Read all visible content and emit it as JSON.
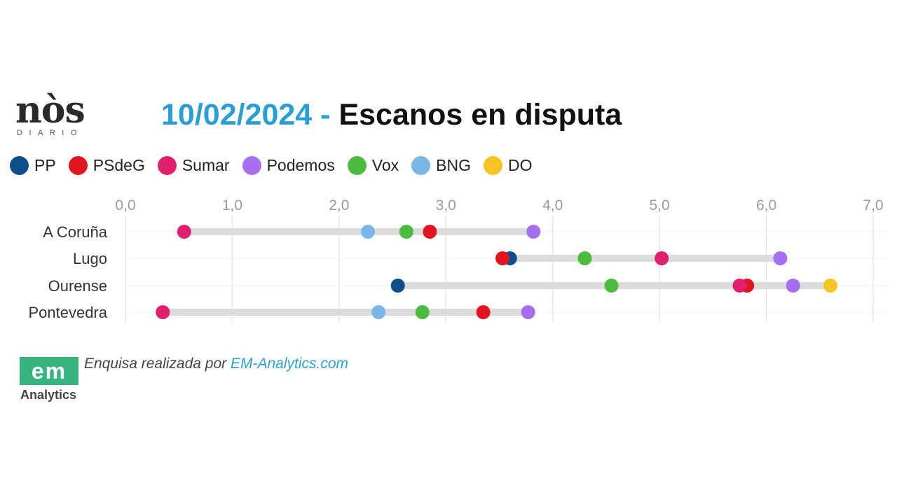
{
  "header": {
    "logo_text": "nòs",
    "logo_subtext": "DIARIO",
    "title_date": "10/02/2024",
    "title_separator": " - ",
    "title_main": "Escanos en disputa"
  },
  "colors": {
    "PP": "#0d4f8b",
    "PSdeG": "#e0151f",
    "Sumar": "#e0206f",
    "Podemos": "#a66ff0",
    "Vox": "#4cbb3f",
    "BNG": "#7ab7e6",
    "DO": "#f6c424",
    "title_accent": "#2a9fd6",
    "footer_logo": "#37b37f"
  },
  "chart_data": {
    "type": "scatter",
    "subtype": "dot-plot",
    "x_tick_labels": [
      "0,0",
      "1,0",
      "2,0",
      "3,0",
      "4,0",
      "5,0",
      "6,0",
      "7,0"
    ],
    "xlim": [
      0,
      7
    ],
    "grid": true,
    "legend_position": "top",
    "categories": [
      "A Coruña",
      "Lugo",
      "Ourense",
      "Pontevedra"
    ],
    "series": [
      {
        "name": "PP",
        "color_key": "PP",
        "values": [
          null,
          3.6,
          2.55,
          null
        ]
      },
      {
        "name": "PSdeG",
        "color_key": "PSdeG",
        "values": [
          2.85,
          3.53,
          5.82,
          3.35
        ]
      },
      {
        "name": "Sumar",
        "color_key": "Sumar",
        "values": [
          0.55,
          5.02,
          5.75,
          0.35
        ]
      },
      {
        "name": "Podemos",
        "color_key": "Podemos",
        "values": [
          3.82,
          6.13,
          6.25,
          3.77
        ]
      },
      {
        "name": "Vox",
        "color_key": "Vox",
        "values": [
          2.63,
          4.3,
          4.55,
          2.78
        ]
      },
      {
        "name": "BNG",
        "color_key": "BNG",
        "values": [
          2.27,
          null,
          null,
          2.37
        ]
      },
      {
        "name": "DO",
        "color_key": "DO",
        "values": [
          null,
          null,
          6.6,
          null
        ]
      }
    ]
  },
  "footer": {
    "logo_text": "em",
    "logo_subtext": "Analytics",
    "note_prefix": "Enquisa realizada por ",
    "note_link": "EM-Analytics.com"
  }
}
